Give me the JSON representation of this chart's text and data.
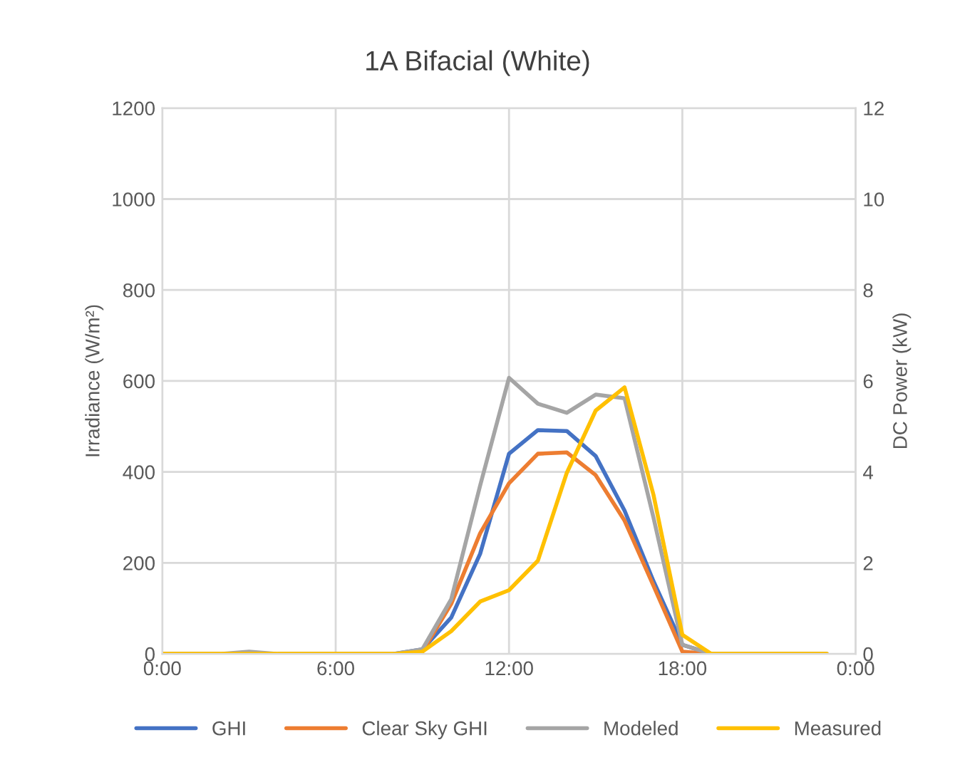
{
  "chart_data": {
    "type": "line",
    "title": "1A Bifacial (White)",
    "ylabel": "Irradiance (W/m²)",
    "y2label": "DC Power (kW)",
    "x": [
      0,
      1,
      2,
      3,
      4,
      5,
      6,
      7,
      8,
      9,
      10,
      11,
      12,
      13,
      14,
      15,
      16,
      17,
      18,
      19,
      20,
      21,
      22,
      23
    ],
    "series": [
      {
        "name": "GHI",
        "color": "#4472c4",
        "values": [
          null,
          null,
          null,
          null,
          null,
          null,
          null,
          null,
          0,
          10,
          80,
          220,
          440,
          492,
          490,
          435,
          315,
          160,
          20,
          0,
          null,
          null,
          null,
          null
        ]
      },
      {
        "name": "Clear Sky GHI",
        "color": "#ed7d31",
        "values": [
          null,
          null,
          null,
          null,
          null,
          null,
          null,
          null,
          null,
          5,
          110,
          265,
          375,
          440,
          443,
          393,
          293,
          150,
          5,
          0,
          null,
          null,
          null,
          null
        ]
      },
      {
        "name": "Modeled",
        "color": "#a5a5a5",
        "axis": "y2",
        "values": [
          0,
          0,
          0,
          0.05,
          0,
          0,
          0,
          0,
          0,
          0.1,
          1.2,
          3.7,
          6.07,
          5.5,
          5.3,
          5.7,
          5.62,
          3.0,
          0.2,
          0,
          0,
          0,
          0,
          0
        ]
      },
      {
        "name": "Measured",
        "color": "#ffc000",
        "axis": "y2",
        "values": [
          0,
          0,
          0,
          0,
          0,
          0,
          0,
          0,
          0,
          0.05,
          0.5,
          1.15,
          1.4,
          2.05,
          3.98,
          5.35,
          5.86,
          3.5,
          0.42,
          0,
          0,
          0,
          0,
          0
        ]
      }
    ],
    "xlim": [
      0,
      24
    ],
    "xticks": [
      {
        "value": 0,
        "label": "0:00"
      },
      {
        "value": 6,
        "label": "6:00"
      },
      {
        "value": 12,
        "label": "12:00"
      },
      {
        "value": 18,
        "label": "18:00"
      },
      {
        "value": 24,
        "label": "0:00"
      }
    ],
    "ylim": [
      0,
      1200
    ],
    "yticks": [
      0,
      200,
      400,
      600,
      800,
      1000,
      1200
    ],
    "y2lim": [
      0,
      12
    ],
    "y2ticks": [
      0,
      2,
      4,
      6,
      8,
      10,
      12
    ],
    "grid": true,
    "legend": "bottom",
    "marker": "none",
    "line_style": "solid"
  }
}
